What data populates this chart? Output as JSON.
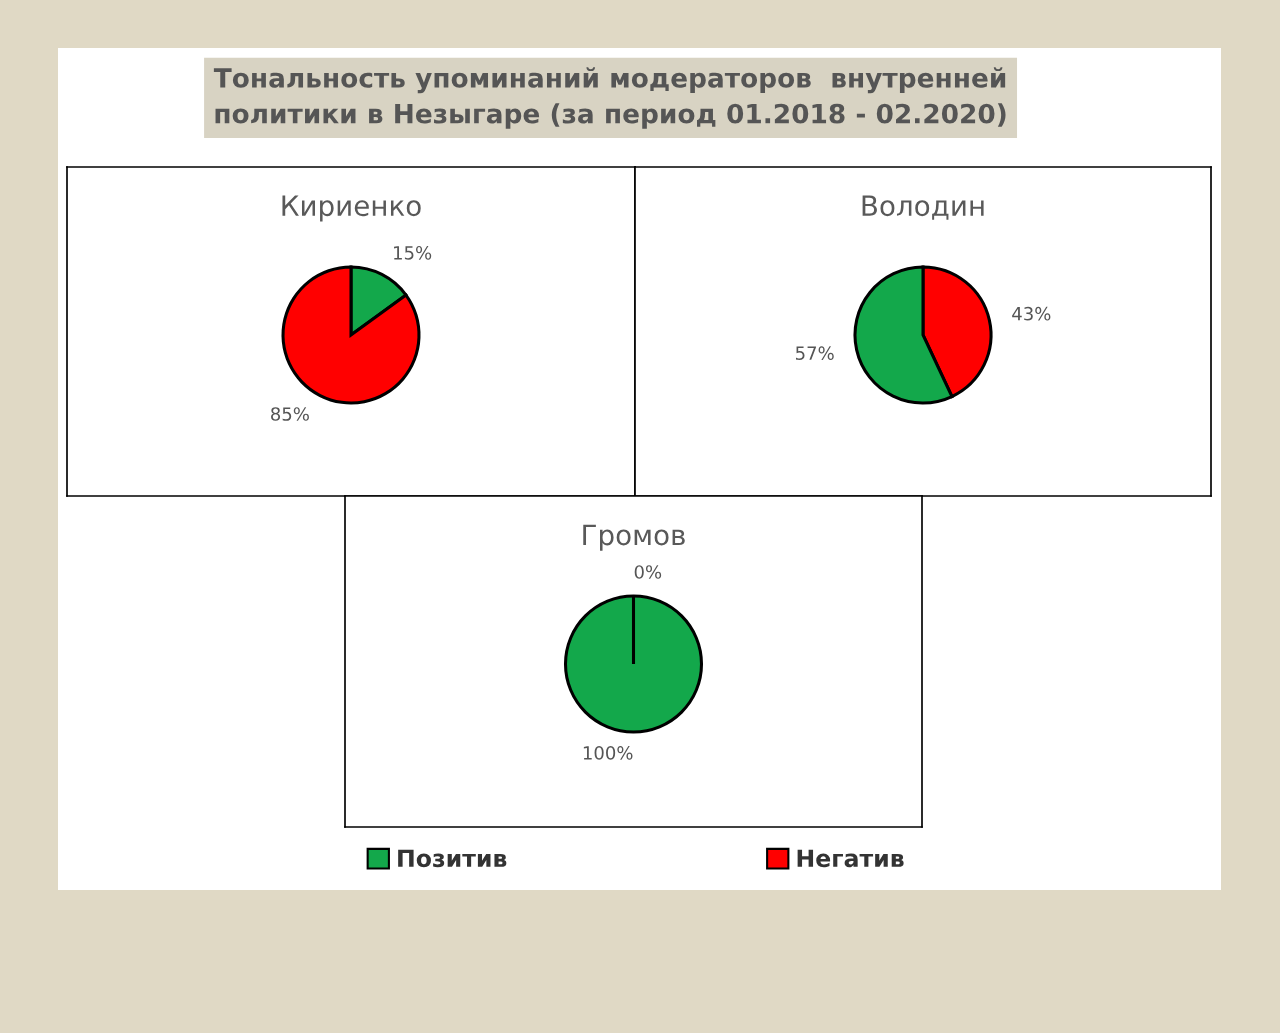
{
  "chart_data": [
    {
      "type": "pie",
      "title": "Кириенко",
      "annotations": [
        "Тональность упоминаний модераторов  внутренней\nполитики в Незыгаре (за период 01.2018 - 02.2020)"
      ],
      "categories": [
        "Позитив",
        "Негатив"
      ],
      "values": [
        15,
        85
      ],
      "colors": [
        "#13a84b",
        "#ff0000"
      ],
      "value_labels": [
        "15%",
        "85%"
      ],
      "legend": "bottom"
    },
    {
      "type": "pie",
      "title": "Володин",
      "categories": [
        null,
        null
      ],
      "values": [
        43,
        57
      ],
      "colors": [
        "#ff0000",
        "#13a84b"
      ],
      "value_labels": [
        "43%",
        "57%"
      ]
    },
    {
      "type": "pie",
      "title": "Громов",
      "categories": [
        null,
        null
      ],
      "values": [
        100,
        0
      ],
      "colors": [
        "#13a84b",
        "#ff0000"
      ],
      "value_labels": [
        "100%",
        "0%"
      ]
    }
  ]
}
